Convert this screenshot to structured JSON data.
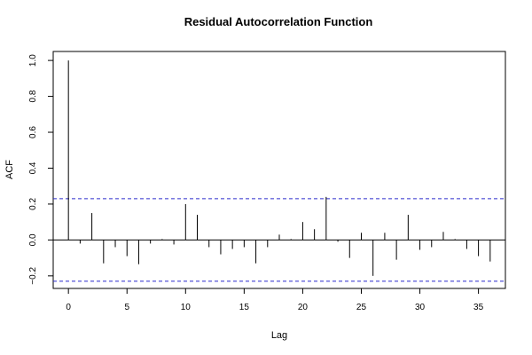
{
  "chart_data": {
    "type": "bar",
    "title": "Residual Autocorrelation Function",
    "xlabel": "Lag",
    "ylabel": "ACF",
    "xlim": [
      -1.3,
      37.3
    ],
    "ylim": [
      -0.27,
      1.05
    ],
    "x_ticks": [
      0,
      5,
      10,
      15,
      20,
      25,
      30,
      35
    ],
    "y_ticks": [
      -0.2,
      0.0,
      0.2,
      0.4,
      0.6,
      0.8,
      1.0
    ],
    "y_tick_labels": [
      "−0.2",
      "0.0",
      "0.2",
      "0.4",
      "0.6",
      "0.8",
      "1.0"
    ],
    "lags": [
      0,
      1,
      2,
      3,
      4,
      5,
      6,
      7,
      8,
      9,
      10,
      11,
      12,
      13,
      14,
      15,
      16,
      17,
      18,
      19,
      20,
      21,
      22,
      23,
      24,
      25,
      26,
      27,
      28,
      29,
      30,
      31,
      32,
      33,
      34,
      35,
      36
    ],
    "acf": [
      1.0,
      -0.02,
      0.15,
      -0.13,
      -0.04,
      -0.09,
      -0.135,
      -0.02,
      0.005,
      -0.025,
      0.2,
      0.14,
      -0.04,
      -0.08,
      -0.05,
      -0.04,
      -0.13,
      -0.04,
      0.03,
      0.005,
      0.1,
      0.06,
      0.24,
      -0.01,
      -0.1,
      0.04,
      -0.2,
      0.04,
      -0.11,
      0.14,
      -0.055,
      -0.04,
      0.045,
      0.005,
      -0.05,
      -0.09,
      -0.12
    ],
    "confidence_bound": 0.23,
    "grid": false,
    "colors": {
      "bars": "#000000",
      "confidence": "#2a2acc",
      "zero_line": "#000000"
    }
  }
}
